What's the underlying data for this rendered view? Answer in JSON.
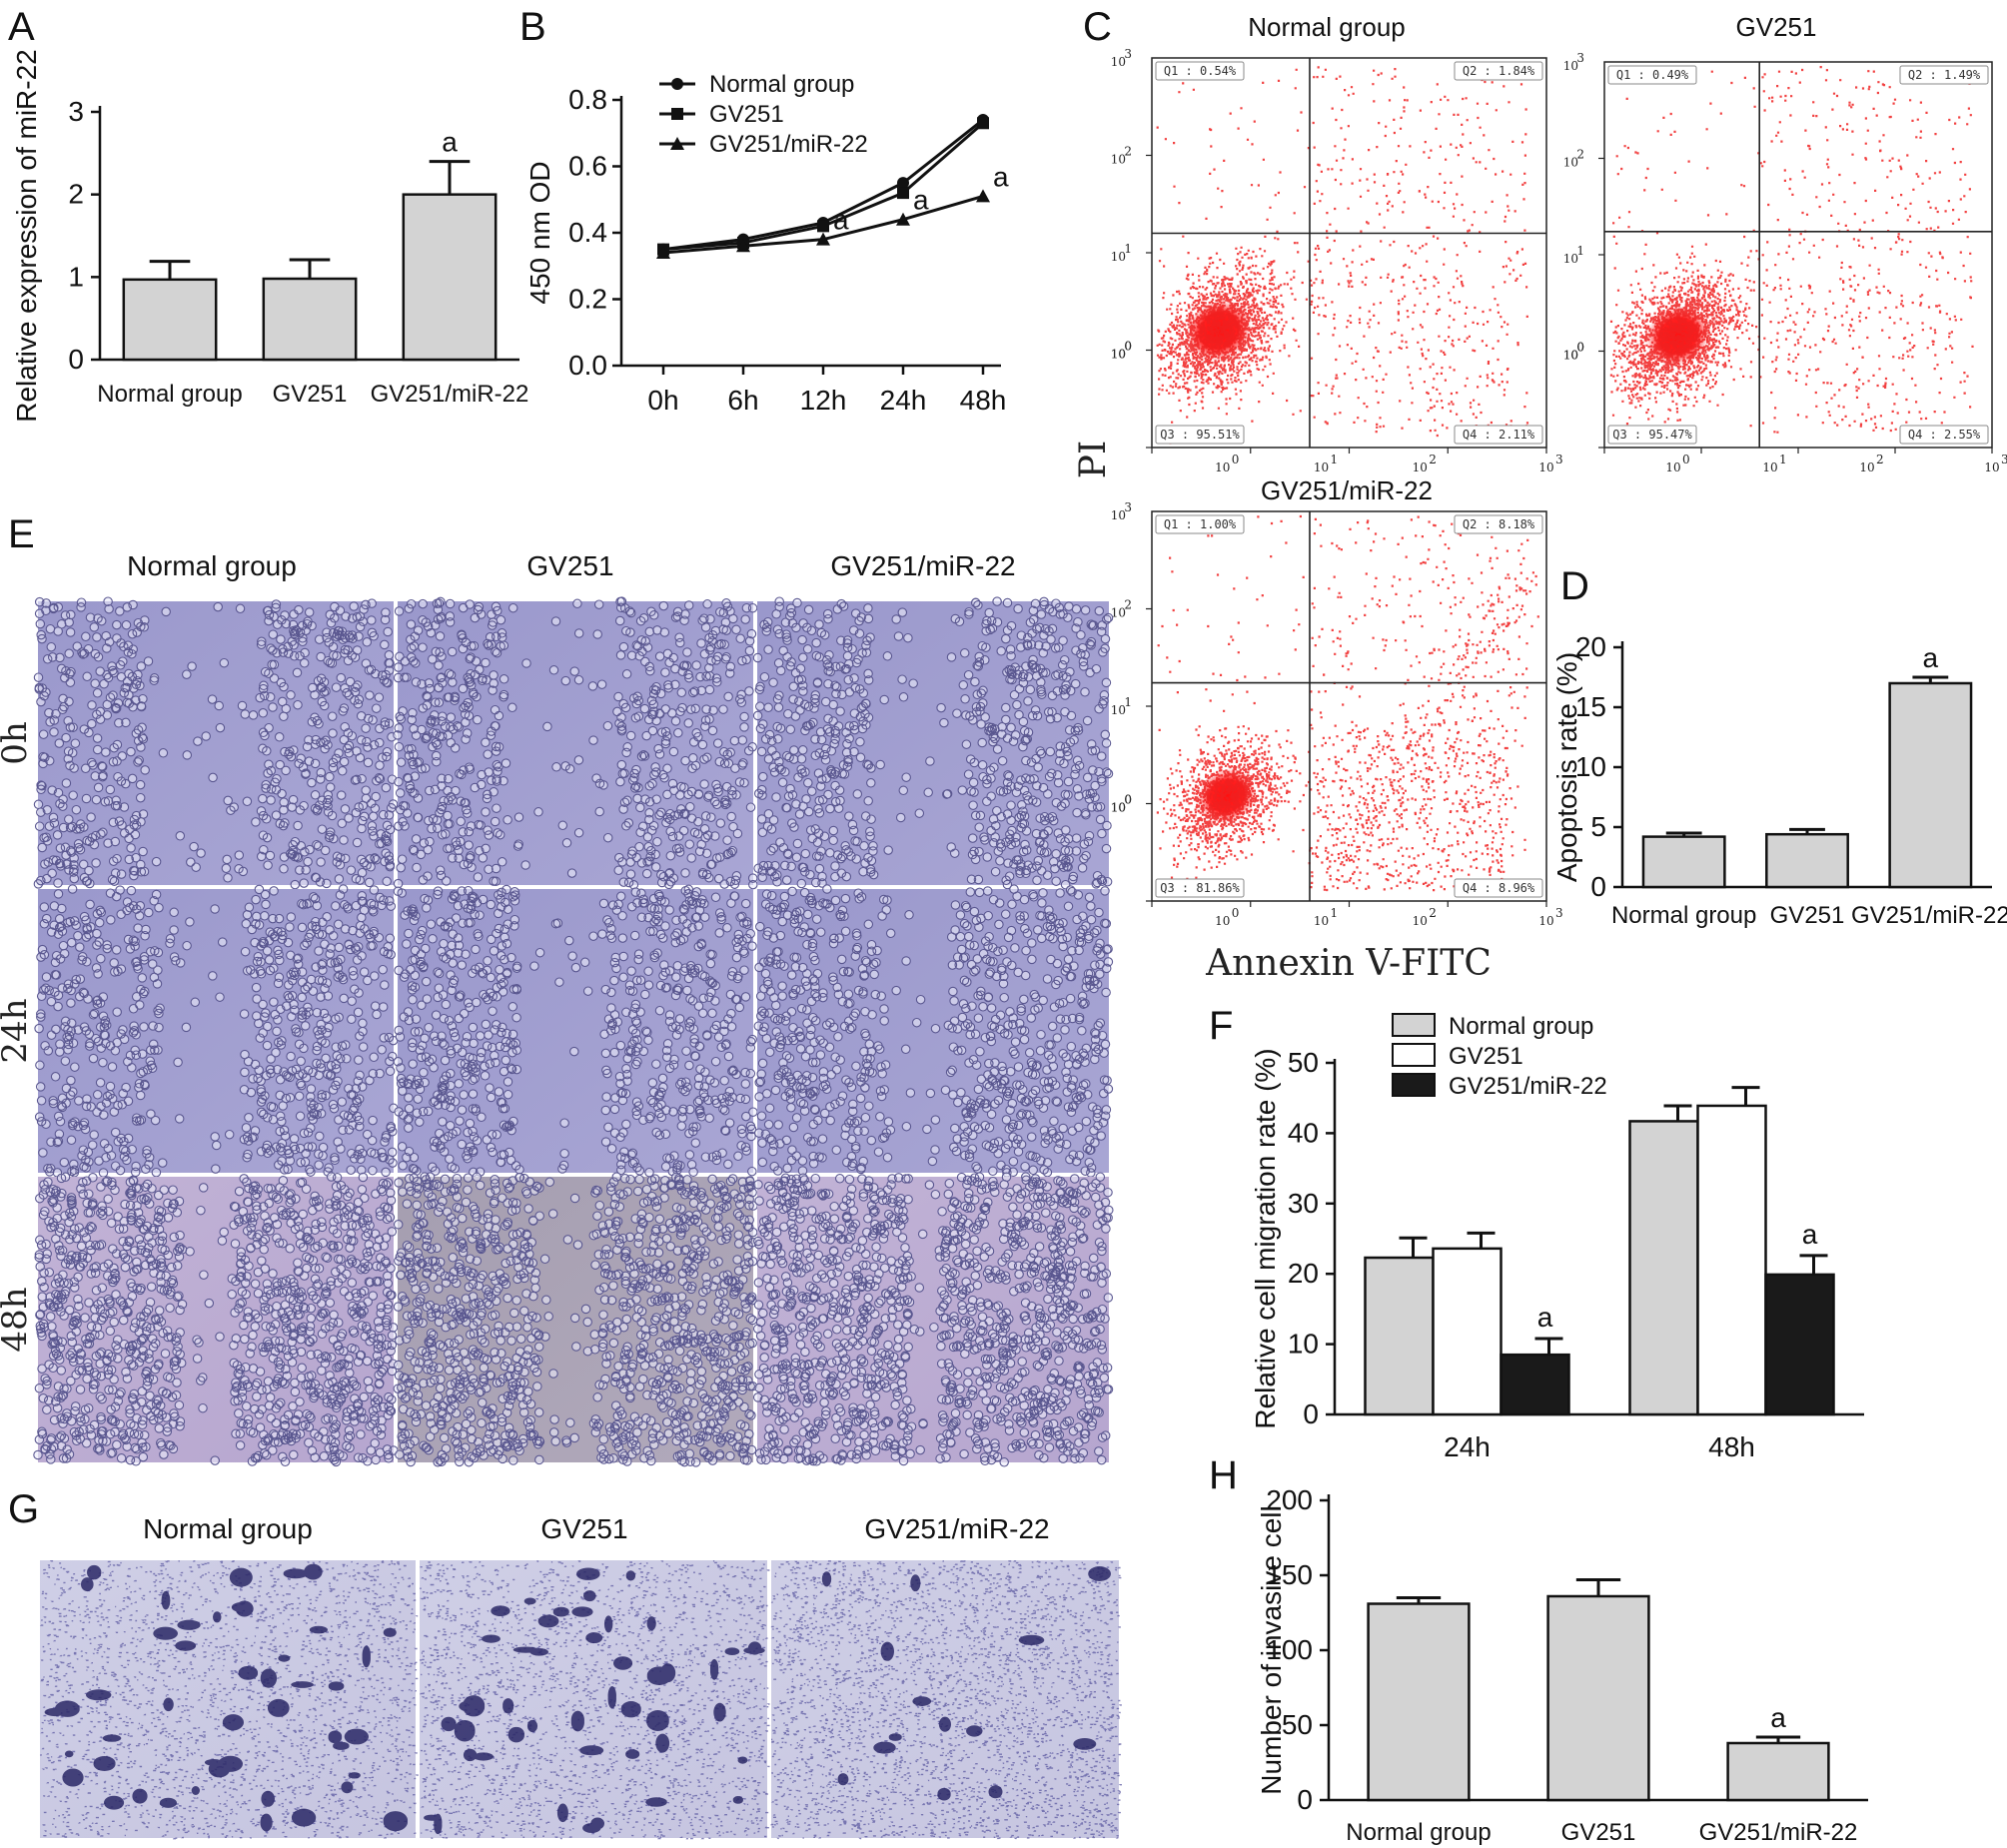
{
  "panels": {
    "A": {
      "letter": "A",
      "chart_data": {
        "type": "bar",
        "categories": [
          "Normal group",
          "GV251",
          "GV251/miR-22"
        ],
        "values": [
          0.97,
          0.98,
          2.0
        ],
        "errors": [
          0.22,
          0.23,
          0.4
        ],
        "annotations": [
          "",
          "",
          "a"
        ],
        "ylabel": "Relative expression of miR-22",
        "ylim": [
          0,
          3
        ],
        "yticks": [
          "0",
          "1",
          "2",
          "3"
        ],
        "bar_color": "#d3d3d3"
      }
    },
    "B": {
      "letter": "B",
      "chart_data": {
        "type": "line",
        "categories": [
          "0h",
          "6h",
          "12h",
          "24h",
          "48h"
        ],
        "ylabel": "450 nm OD",
        "ylim": [
          0,
          0.8
        ],
        "yticks": [
          "0.0",
          "0.2",
          "0.4",
          "0.6",
          "0.8"
        ],
        "legend": "top-left",
        "series": [
          {
            "name": "Normal group",
            "marker": "circle",
            "values": [
              0.35,
              0.38,
              0.43,
              0.55,
              0.74
            ]
          },
          {
            "name": "GV251",
            "marker": "square",
            "values": [
              0.35,
              0.37,
              0.42,
              0.52,
              0.73
            ]
          },
          {
            "name": "GV251/miR-22",
            "marker": "triangle",
            "values": [
              0.34,
              0.36,
              0.38,
              0.44,
              0.51
            ]
          }
        ],
        "annotations": [
          {
            "series": 2,
            "index": 2,
            "text": "a"
          },
          {
            "series": 2,
            "index": 3,
            "text": "a"
          },
          {
            "series": 2,
            "index": 4,
            "text": "a"
          }
        ]
      }
    },
    "C": {
      "letter": "C",
      "ylabel": "PI",
      "xlabel": "Annexin V-FITC",
      "tick_labels": [
        "10",
        "0",
        "1",
        "2",
        "3"
      ],
      "plots": [
        {
          "title": "Normal group",
          "q1": "Q1 : 0.54%",
          "q2": "Q2 : 1.84%",
          "q3": "Q3 : 95.51%",
          "q4": "Q4 : 2.11%"
        },
        {
          "title": "GV251",
          "q1": "Q1 : 0.49%",
          "q2": "Q2 : 1.49%",
          "q3": "Q3 : 95.47%",
          "q4": "Q4 : 2.55%"
        },
        {
          "title": "GV251/miR-22",
          "q1": "Q1 : 1.00%",
          "q2": "Q2 : 8.18%",
          "q3": "Q3 : 81.86%",
          "q4": "Q4 : 8.96%"
        }
      ]
    },
    "D": {
      "letter": "D",
      "chart_data": {
        "type": "bar",
        "categories": [
          "Normal group",
          "GV251",
          "GV251/miR-22"
        ],
        "values": [
          4.2,
          4.4,
          17.0
        ],
        "errors": [
          0.3,
          0.4,
          0.5
        ],
        "annotations": [
          "",
          "",
          "a"
        ],
        "ylabel": "Apoptosis rate (%)",
        "ylim": [
          0,
          20
        ],
        "yticks": [
          "0",
          "5",
          "10",
          "15",
          "20"
        ],
        "bar_color": "#d3d3d3"
      }
    },
    "E": {
      "letter": "E",
      "columns": [
        "Normal group",
        "GV251",
        "GV251/miR-22"
      ],
      "rows": [
        "0h",
        "24h",
        "48h"
      ]
    },
    "F": {
      "letter": "F",
      "chart_data": {
        "type": "bar",
        "categories": [
          "24h",
          "48h"
        ],
        "ylabel": "Relative cell migration rate (%)",
        "ylim": [
          0,
          50
        ],
        "yticks": [
          "0",
          "10",
          "20",
          "30",
          "40",
          "50"
        ],
        "legend": "top-left",
        "series": [
          {
            "name": "Normal group",
            "values": [
              22.3,
              41.7
            ],
            "errors": [
              2.8,
              2.2
            ],
            "color": "#d3d3d3",
            "annotations": [
              "",
              ""
            ]
          },
          {
            "name": "GV251",
            "values": [
              23.6,
              43.9
            ],
            "errors": [
              2.2,
              2.6
            ],
            "color": "#ffffff",
            "annotations": [
              "",
              ""
            ]
          },
          {
            "name": "GV251/miR-22",
            "values": [
              8.5,
              19.9
            ],
            "errors": [
              2.3,
              2.7
            ],
            "color": "#1a1a1a",
            "annotations": [
              "a",
              "a"
            ]
          }
        ]
      }
    },
    "G": {
      "letter": "G",
      "columns": [
        "Normal group",
        "GV251",
        "GV251/miR-22"
      ]
    },
    "H": {
      "letter": "H",
      "chart_data": {
        "type": "bar",
        "categories": [
          "Normal group",
          "GV251",
          "GV251/miR-22"
        ],
        "values": [
          131,
          136,
          38
        ],
        "errors": [
          4,
          11,
          4
        ],
        "annotations": [
          "",
          "",
          "a"
        ],
        "ylabel": "Number of invasive cell",
        "ylim": [
          0,
          200
        ],
        "yticks": [
          "0",
          "50",
          "100",
          "150",
          "200"
        ],
        "bar_color": "#d3d3d3"
      }
    }
  }
}
